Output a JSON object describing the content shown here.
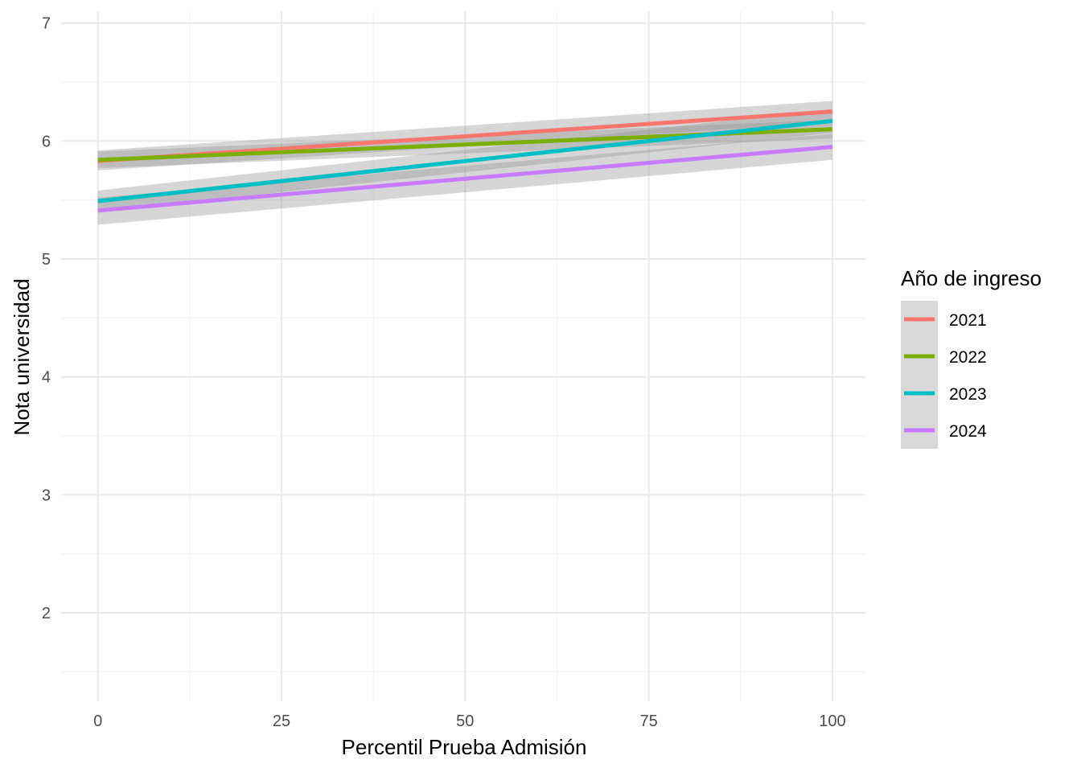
{
  "chart_data": {
    "type": "line",
    "title": "",
    "xlabel": "Percentil Prueba Admisión",
    "ylabel": "Nota universidad",
    "xlim": [
      -5,
      104.5
    ],
    "ylim": [
      1.25,
      7.1
    ],
    "x_major_ticks": [
      0,
      25,
      50,
      75,
      100
    ],
    "x_tick_labels": [
      "0",
      "25",
      "50",
      "75",
      "100"
    ],
    "x_minor_ticks": [
      12.5,
      37.5,
      62.5,
      87.5
    ],
    "y_major_ticks": [
      2,
      3,
      4,
      5,
      6,
      7
    ],
    "y_tick_labels": [
      "2",
      "3",
      "4",
      "5",
      "6",
      "7"
    ],
    "y_minor_ticks": [
      1.5,
      2.5,
      3.5,
      4.5,
      5.5,
      6.5
    ],
    "grid": true,
    "confidence_band_color": "#999999",
    "legend": {
      "title": "Año de ingreso",
      "position": "right",
      "key_background": "#d9d9d9"
    },
    "series": [
      {
        "name": "2021",
        "color": "#F8766D",
        "x": [
          0,
          100
        ],
        "y": [
          5.83,
          6.25
        ],
        "band_lower": [
          5.75,
          6.16
        ],
        "band_upper": [
          5.92,
          6.34
        ]
      },
      {
        "name": "2022",
        "color": "#7CAE00",
        "x": [
          0,
          100
        ],
        "y": [
          5.84,
          6.1
        ],
        "band_lower": [
          5.77,
          6.02
        ],
        "band_upper": [
          5.91,
          6.18
        ]
      },
      {
        "name": "2023",
        "color": "#00BFC4",
        "x": [
          0,
          100
        ],
        "y": [
          5.49,
          6.17
        ],
        "band_lower": [
          5.4,
          6.07
        ],
        "band_upper": [
          5.58,
          6.27
        ]
      },
      {
        "name": "2024",
        "color": "#C77CFF",
        "x": [
          0,
          100
        ],
        "y": [
          5.41,
          5.95
        ],
        "band_lower": [
          5.29,
          5.84
        ],
        "band_upper": [
          5.52,
          6.06
        ]
      }
    ]
  }
}
